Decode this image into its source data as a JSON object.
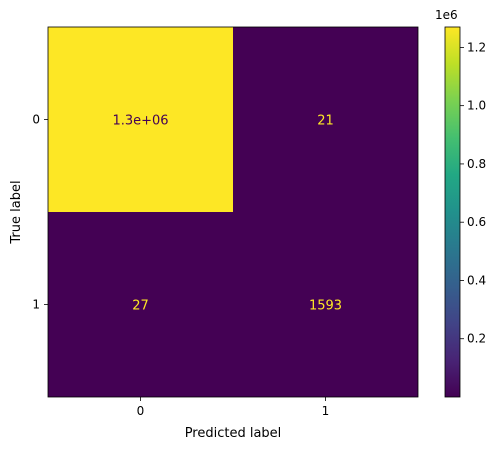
{
  "chart_data": {
    "type": "heatmap",
    "title": "",
    "xlabel": "Predicted label",
    "ylabel": "True label",
    "x_categories": [
      "0",
      "1"
    ],
    "y_categories": [
      "0",
      "1"
    ],
    "values": [
      [
        1300000,
        21
      ],
      [
        27,
        1593
      ]
    ],
    "cell_labels": [
      [
        "1.3e+06",
        "21"
      ],
      [
        "27",
        "1593"
      ]
    ],
    "colormap": "viridis",
    "colors": {
      "high": "#fde725",
      "low": "#440154",
      "text_on_high": "#440154",
      "text_on_low": "#fde725"
    },
    "colorbar": {
      "multiplier": "1e6",
      "ticks": [
        0.2,
        0.4,
        0.6,
        0.8,
        1.0,
        1.2
      ],
      "tick_labels": [
        "0.2",
        "0.4",
        "0.6",
        "0.8",
        "1.0",
        "1.2"
      ],
      "range": [
        0.0,
        1.27
      ]
    },
    "grid": false
  }
}
